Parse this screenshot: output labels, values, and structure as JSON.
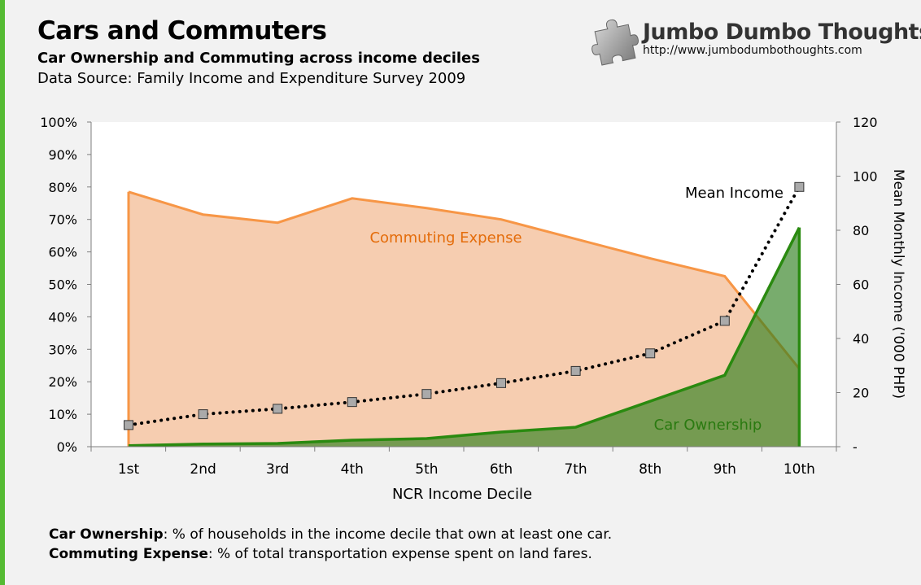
{
  "header": {
    "title": "Cars and Commuters",
    "subtitle": "Car Ownership and Commuting across income deciles",
    "source": "Data Source: Family Income and Expenditure Survey 2009"
  },
  "brand": {
    "name": "Jumbo Dumbo Thoughts",
    "url": "http://www.jumbodumbothoughts.com",
    "logo_icon": "puzzle-piece-icon"
  },
  "notes": {
    "car_label": "Car Ownership",
    "car_text": " % of households in the income decile that own at least one car.",
    "commute_label": "Commuting Expense",
    "commute_text": " % of total transportation expense spent on land fares."
  },
  "chart_data": {
    "type": "area",
    "categories": [
      "1st",
      "2nd",
      "3rd",
      "4th",
      "5th",
      "6th",
      "7th",
      "8th",
      "9th",
      "10th"
    ],
    "xlabel": "NCR Income Decile",
    "ylabel": "",
    "ylabel_right": "Mean Monthly Income ('000 PHP)",
    "ylim": [
      0,
      100
    ],
    "ylim_right": [
      0,
      120
    ],
    "yticks_left": [
      "0%",
      "10%",
      "20%",
      "30%",
      "40%",
      "50%",
      "60%",
      "70%",
      "80%",
      "90%",
      "100%"
    ],
    "yticks_right": [
      "-",
      "20",
      "40",
      "60",
      "80",
      "100",
      "120"
    ],
    "series": [
      {
        "name": "Commuting Expense",
        "type": "area",
        "axis": "left",
        "values": [
          78.5,
          71.5,
          69,
          76.5,
          73.5,
          70,
          64,
          58,
          52.5,
          24
        ],
        "line_color": "#f79646",
        "fill_color": "#f6cdb0"
      },
      {
        "name": "Car Ownership",
        "type": "area",
        "axis": "left",
        "values": [
          0.3,
          0.8,
          1,
          2,
          2.5,
          4.5,
          6,
          14,
          22,
          67.5
        ],
        "line_color": "#2a8a10",
        "fill_color": "#2f7f1f"
      },
      {
        "name": "Mean Income",
        "type": "line",
        "axis": "right",
        "values": [
          8,
          12,
          14,
          16.5,
          19.5,
          23.5,
          28,
          34.5,
          46.5,
          96
        ],
        "line_color": "#000000",
        "marker_color": "#aaaaaa"
      }
    ],
    "grid": false
  }
}
